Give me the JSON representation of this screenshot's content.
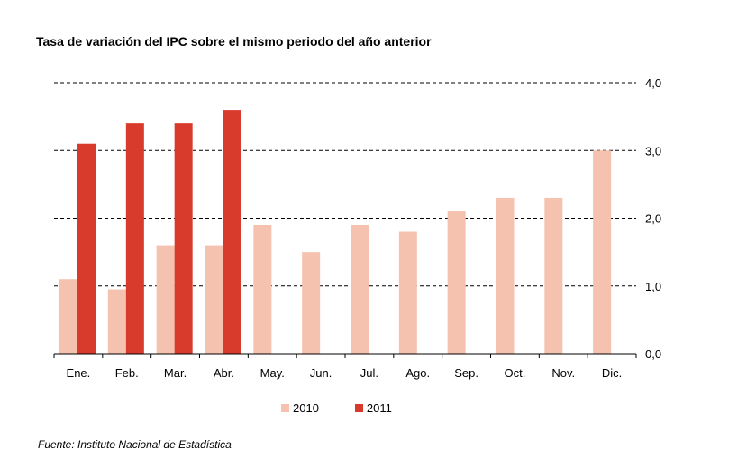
{
  "title": "Tasa de variación del IPC sobre el mismo periodo del año anterior",
  "source": "Fuente: Instituto Nacional de Estadística",
  "colors": {
    "s2010": "#f4c2ae",
    "s2011": "#d83a2b"
  },
  "chart_data": {
    "type": "bar",
    "title": "Tasa de variación del IPC sobre el mismo periodo del año anterior",
    "categories": [
      "Ene.",
      "Feb.",
      "Mar.",
      "Abr.",
      "May.",
      "Jun.",
      "Jul.",
      "Ago.",
      "Sep.",
      "Oct.",
      "Nov.",
      "Dic."
    ],
    "series": [
      {
        "name": "2010",
        "values": [
          1.1,
          0.95,
          1.6,
          1.6,
          1.9,
          1.5,
          1.9,
          1.8,
          2.1,
          2.3,
          2.3,
          3.0
        ]
      },
      {
        "name": "2011",
        "values": [
          3.1,
          3.4,
          3.4,
          3.6,
          null,
          null,
          null,
          null,
          null,
          null,
          null,
          null
        ]
      }
    ],
    "yticks": [
      "0,0",
      "1,0",
      "2,0",
      "3,0",
      "4,0"
    ],
    "ylim": [
      0,
      4
    ],
    "grid": true,
    "legend": "bottom"
  }
}
